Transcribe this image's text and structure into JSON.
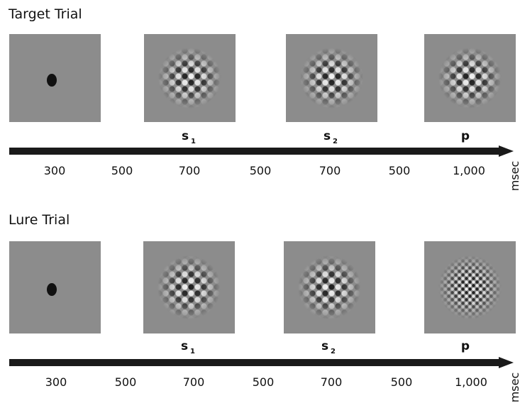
{
  "trials": [
    {
      "title": "Target Trial",
      "stimuli": [
        {
          "letter": "s",
          "sub": "1"
        },
        {
          "letter": "s",
          "sub": "2"
        },
        {
          "letter": "p"
        }
      ],
      "durations": [
        "300",
        "500",
        "700",
        "500",
        "700",
        "500",
        "1,000"
      ],
      "unit": "msec"
    },
    {
      "title": "Lure Trial",
      "stimuli": [
        {
          "letter": "s",
          "sub": "1"
        },
        {
          "letter": "s",
          "sub": "2"
        },
        {
          "letter": "p"
        }
      ],
      "durations": [
        "300",
        "500",
        "700",
        "500",
        "700",
        "500",
        "1,000"
      ],
      "unit": "msec"
    }
  ]
}
